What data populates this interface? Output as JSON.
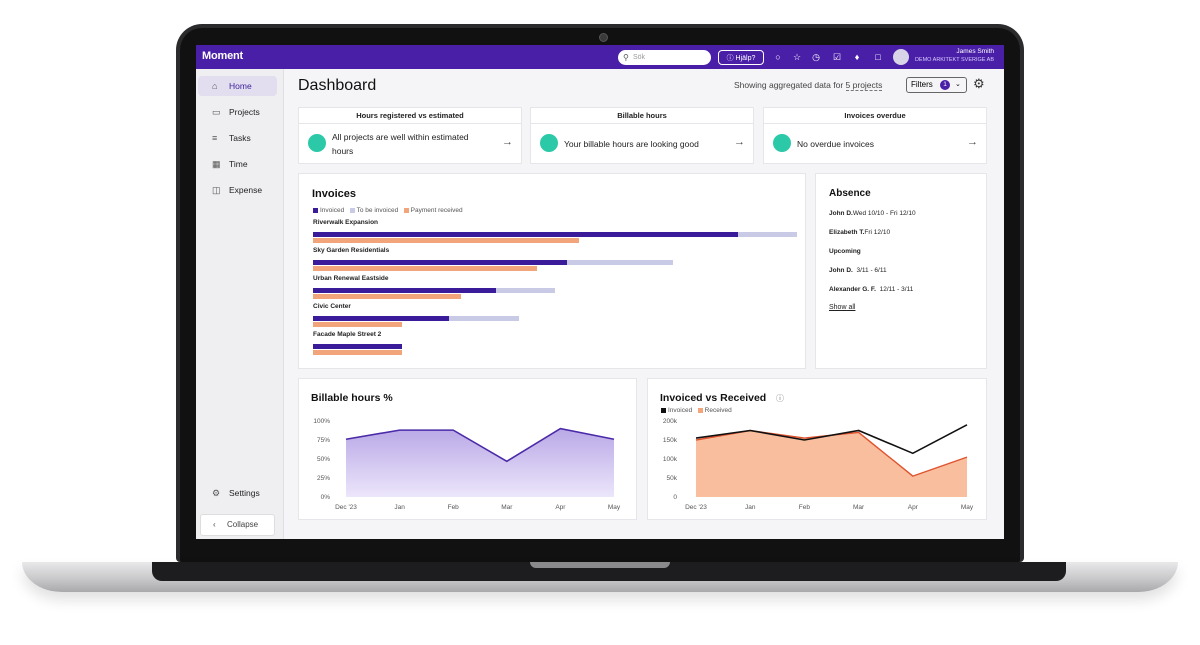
{
  "topbar": {
    "logo": "Moment",
    "search_placeholder": "Sök",
    "help_label": "Hjälp?",
    "user_name": "James Smith",
    "company": "DEMO ARKITEKT SVERIGE AB"
  },
  "sidebar": {
    "items": [
      {
        "label": "Home",
        "icon": "home-icon"
      },
      {
        "label": "Projects",
        "icon": "folder-icon"
      },
      {
        "label": "Tasks",
        "icon": "list-icon"
      },
      {
        "label": "Time",
        "icon": "calendar-icon"
      },
      {
        "label": "Expense",
        "icon": "money-icon"
      }
    ],
    "settings_label": "Settings",
    "collapse_label": "Collapse"
  },
  "header": {
    "title": "Dashboard",
    "showing_prefix": "Showing aggregated data for",
    "showing_link": "5 projects",
    "filters_label": "Filters",
    "filters_count": "1"
  },
  "summary": [
    {
      "title": "Hours registered vs estimated",
      "text": "All projects are well within estimated hours"
    },
    {
      "title": "Billable hours",
      "text": "Your billable hours are looking good"
    },
    {
      "title": "Invoices overdue",
      "text": "No overdue invoices"
    }
  ],
  "invoices": {
    "title": "Invoices",
    "legend": [
      {
        "label": "Invoiced",
        "color": "#3a1c9a"
      },
      {
        "label": "To be invoiced",
        "color": "#c9cbe6"
      },
      {
        "label": "Payment received",
        "color": "#f2a57a"
      }
    ],
    "projects": [
      {
        "name": "Riverwalk Expansion",
        "invoiced": 0.72,
        "to_be_invoiced": 0.1,
        "received": 0.45
      },
      {
        "name": "Sky Garden Residentials",
        "invoiced": 0.43,
        "to_be_invoiced": 0.18,
        "received": 0.38
      },
      {
        "name": "Urban Renewal Eastside",
        "invoiced": 0.31,
        "to_be_invoiced": 0.1,
        "received": 0.25
      },
      {
        "name": "Civic Center",
        "invoiced": 0.23,
        "to_be_invoiced": 0.12,
        "received": 0.15
      },
      {
        "name": "Facade Maple Street 2",
        "invoiced": 0.15,
        "to_be_invoiced": 0.0,
        "received": 0.15
      }
    ]
  },
  "absence": {
    "title": "Absence",
    "current": [
      {
        "name": "John D.",
        "dates": "Wed 10/10 - Fri 12/10"
      },
      {
        "name": "Elizabeth T.",
        "dates": "Fri 12/10"
      }
    ],
    "upcoming_label": "Upcoming",
    "upcoming": [
      {
        "name": "John D.",
        "dates": "3/11 - 6/11"
      },
      {
        "name": "Alexander G. F.",
        "dates": "12/11 - 3/11"
      }
    ],
    "show_all": "Show all"
  },
  "chart_data": [
    {
      "type": "area",
      "title": "Billable hours %",
      "x": [
        "Dec '23",
        "Jan",
        "Feb",
        "Mar",
        "Apr",
        "May"
      ],
      "y_ticks": [
        "100%",
        "75%",
        "50%",
        "25%",
        "0%"
      ],
      "ylim": [
        0,
        100
      ],
      "series": [
        {
          "values": [
            76,
            88,
            88,
            47,
            90,
            76
          ],
          "color": "#4a2aa8"
        }
      ]
    },
    {
      "type": "line",
      "title": "Invoiced vs Received",
      "x": [
        "Dec '23",
        "Jan",
        "Feb",
        "Mar",
        "Apr",
        "May"
      ],
      "y_ticks": [
        "200k",
        "150k",
        "100k",
        "50k",
        "0"
      ],
      "ylim": [
        0,
        200
      ],
      "series": [
        {
          "name": "Invoiced",
          "values": [
            155,
            175,
            150,
            175,
            115,
            190
          ],
          "color": "#111111"
        },
        {
          "name": "Received",
          "values": [
            150,
            175,
            155,
            170,
            55,
            105
          ],
          "color": "#f2a57a"
        }
      ]
    }
  ]
}
